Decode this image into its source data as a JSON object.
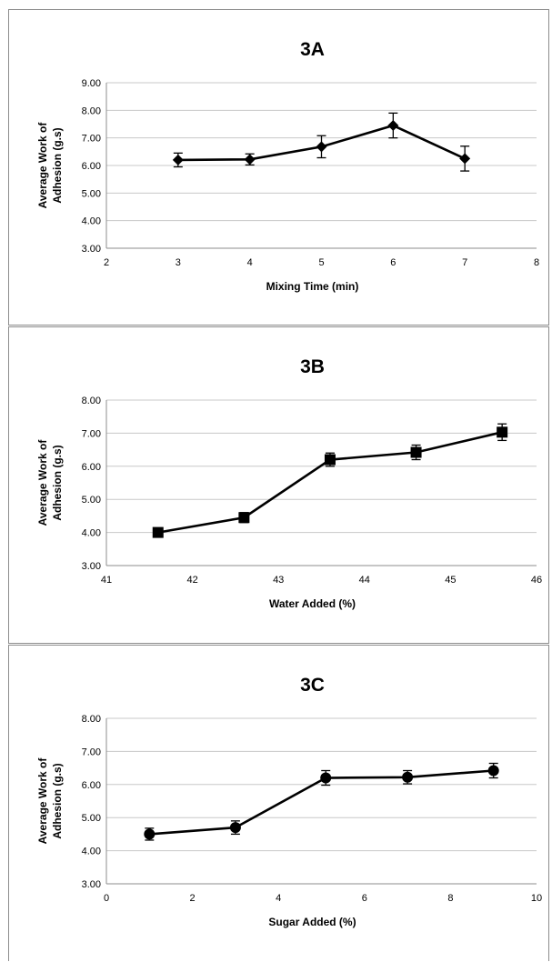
{
  "chart_data": [
    {
      "type": "line",
      "title": "3A",
      "xlabel": "Mixing Time (min)",
      "ylabel": "Average Work of Adhesion (g.s)",
      "xlim": [
        2,
        8
      ],
      "ylim": [
        3,
        9
      ],
      "x_ticks": [
        "2",
        "3",
        "4",
        "5",
        "6",
        "7",
        "8"
      ],
      "y_ticks": [
        "3.00",
        "4.00",
        "5.00",
        "6.00",
        "7.00",
        "8.00",
        "9.00"
      ],
      "grid": true,
      "marker": "diamond",
      "x": [
        3,
        4,
        5,
        6,
        7
      ],
      "y": [
        6.2,
        6.22,
        6.68,
        7.45,
        6.25
      ],
      "error": [
        0.25,
        0.2,
        0.4,
        0.45,
        0.45
      ]
    },
    {
      "type": "line",
      "title": "3B",
      "xlabel": "Water Added (%)",
      "ylabel": "Average Work of Adhesion (g.s)",
      "xlim": [
        41,
        46
      ],
      "ylim": [
        3,
        8
      ],
      "x_ticks": [
        "41",
        "42",
        "43",
        "44",
        "45",
        "46"
      ],
      "y_ticks": [
        "3.00",
        "4.00",
        "5.00",
        "6.00",
        "7.00",
        "8.00"
      ],
      "grid": true,
      "marker": "square",
      "x": [
        41.6,
        42.6,
        43.6,
        44.6,
        45.6
      ],
      "y": [
        4.0,
        4.45,
        6.2,
        6.42,
        7.03
      ],
      "error": [
        0.12,
        0.15,
        0.2,
        0.22,
        0.25
      ]
    },
    {
      "type": "line",
      "title": "3C",
      "xlabel": "Sugar Added (%)",
      "ylabel": "Average Work of Adhesion (g.s)",
      "xlim": [
        0,
        10
      ],
      "ylim": [
        3,
        8
      ],
      "x_ticks": [
        "0",
        "2",
        "4",
        "6",
        "8",
        "10"
      ],
      "y_ticks": [
        "3.00",
        "4.00",
        "5.00",
        "6.00",
        "7.00",
        "8.00"
      ],
      "grid": true,
      "marker": "circle",
      "x": [
        1,
        3,
        5.1,
        7,
        9
      ],
      "y": [
        4.5,
        4.7,
        6.2,
        6.22,
        6.42
      ],
      "error": [
        0.18,
        0.2,
        0.22,
        0.2,
        0.22
      ]
    }
  ]
}
